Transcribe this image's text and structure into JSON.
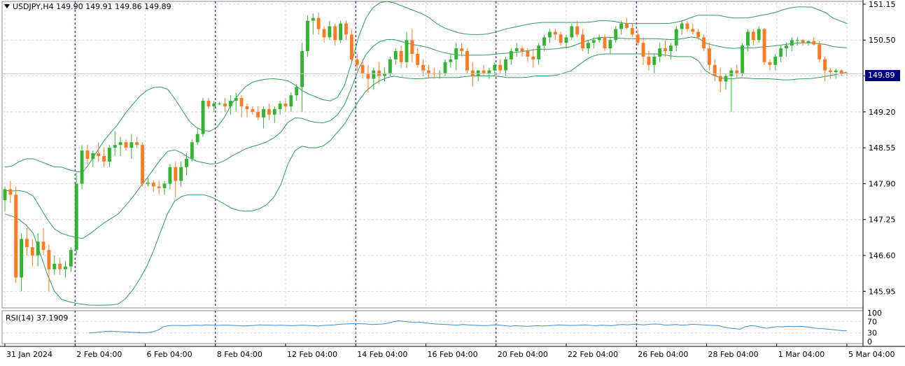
{
  "header": {
    "symbol_line": "USDJPY,H4  149.90 149.91 149.86 149.89"
  },
  "current_price_label": "149.89",
  "rsi": {
    "label": "RSI(14) 37.1909",
    "levels": [
      "100",
      "70",
      "30",
      "0"
    ],
    "values": [
      30,
      31,
      33,
      35,
      36,
      35,
      34,
      33,
      32,
      31,
      30,
      31,
      34,
      40,
      52,
      55,
      56,
      56,
      55,
      56,
      57,
      56,
      58,
      57,
      56,
      57,
      57,
      56,
      55,
      54,
      55,
      56,
      58,
      57,
      57,
      56,
      57,
      56,
      55,
      56,
      57,
      56,
      55,
      54,
      56,
      57,
      58,
      60,
      61,
      62,
      63,
      62,
      61,
      59,
      60,
      61,
      64,
      69,
      72,
      70,
      68,
      66,
      67,
      65,
      63,
      61,
      60,
      59,
      58,
      57,
      59,
      58,
      57,
      56,
      55,
      56,
      58,
      57,
      55,
      53,
      55,
      54,
      53,
      54,
      55,
      54,
      55,
      56,
      58,
      57,
      56,
      56,
      57,
      58,
      56,
      55,
      57,
      56,
      55,
      58,
      59,
      58,
      60,
      59,
      58,
      60,
      61,
      60,
      57,
      58,
      59,
      57,
      58,
      60,
      59,
      58,
      57,
      56,
      55,
      50,
      47,
      45,
      43,
      52,
      55,
      54,
      49,
      46,
      50,
      52,
      51,
      53,
      52,
      53,
      52,
      50,
      47,
      45,
      44,
      42,
      40,
      38,
      37
    ]
  },
  "colors": {
    "bull": "#32b432",
    "bear": "#ff7a22",
    "band": "#2e9b5c",
    "rsi_line": "#3c8fd8",
    "grid": "#d4d4d4",
    "separator": "#000080",
    "price_tag_bg": "#000080"
  },
  "chart_data": {
    "type": "candlestick",
    "title": "USDJPY,H4",
    "timeframe": "H4",
    "last_ohlc": {
      "open": 149.9,
      "high": 149.91,
      "low": 149.86,
      "close": 149.89
    },
    "ylim": [
      145.65,
      151.2
    ],
    "yticks": [
      "151.15",
      "150.50",
      "149.85",
      "149.20",
      "148.55",
      "147.90",
      "147.25",
      "146.60",
      "145.95"
    ],
    "xticks": [
      "31 Jan 2024",
      "2 Feb 04:00",
      "6 Feb 04:00",
      "8 Feb 04:00",
      "12 Feb 04:00",
      "14 Feb 04:00",
      "16 Feb 04:00",
      "20 Feb 04:00",
      "22 Feb 04:00",
      "26 Feb 04:00",
      "28 Feb 04:00",
      "1 Mar 04:00",
      "5 Mar 04:00"
    ],
    "grid": true,
    "indicators": [
      "Bollinger Bands",
      "RSI(14)"
    ],
    "ohlc": [
      [
        147.6,
        147.85,
        147.4,
        147.8
      ],
      [
        147.8,
        147.95,
        147.55,
        147.7
      ],
      [
        147.7,
        147.85,
        146.1,
        146.2
      ],
      [
        146.2,
        147.0,
        145.95,
        146.9
      ],
      [
        146.9,
        147.1,
        146.6,
        146.75
      ],
      [
        146.75,
        146.9,
        146.4,
        146.6
      ],
      [
        146.6,
        147.0,
        146.4,
        146.85
      ],
      [
        146.85,
        147.1,
        146.6,
        146.7
      ],
      [
        146.7,
        146.8,
        145.95,
        146.35
      ],
      [
        146.35,
        146.6,
        146.25,
        146.45
      ],
      [
        146.45,
        146.55,
        146.25,
        146.35
      ],
      [
        146.35,
        146.5,
        146.2,
        146.4
      ],
      [
        146.4,
        146.75,
        146.3,
        146.7
      ],
      [
        146.7,
        148.1,
        146.6,
        147.9
      ],
      [
        147.9,
        148.6,
        147.8,
        148.5
      ],
      [
        148.5,
        148.6,
        148.25,
        148.35
      ],
      [
        148.35,
        148.5,
        148.2,
        148.45
      ],
      [
        148.45,
        148.65,
        148.3,
        148.4
      ],
      [
        148.4,
        148.55,
        148.2,
        148.3
      ],
      [
        148.3,
        148.6,
        148.2,
        148.55
      ],
      [
        148.55,
        148.85,
        148.4,
        148.6
      ],
      [
        148.6,
        148.75,
        148.4,
        148.65
      ],
      [
        148.65,
        148.7,
        148.5,
        148.55
      ],
      [
        148.55,
        148.8,
        148.35,
        148.65
      ],
      [
        148.65,
        148.75,
        148.55,
        148.6
      ],
      [
        148.6,
        148.65,
        147.85,
        147.9
      ],
      [
        147.9,
        148.0,
        147.85,
        147.92
      ],
      [
        147.92,
        147.96,
        147.75,
        147.85
      ],
      [
        147.85,
        147.95,
        147.7,
        147.82
      ],
      [
        147.82,
        147.95,
        147.7,
        147.9
      ],
      [
        147.9,
        148.25,
        147.8,
        148.2
      ],
      [
        148.2,
        148.3,
        147.65,
        147.95
      ],
      [
        147.95,
        148.3,
        147.85,
        148.2
      ],
      [
        148.2,
        148.45,
        148.05,
        148.35
      ],
      [
        148.35,
        148.7,
        148.3,
        148.65
      ],
      [
        148.65,
        148.9,
        148.6,
        148.8
      ],
      [
        148.8,
        149.45,
        148.75,
        149.4
      ],
      [
        149.4,
        149.45,
        149.25,
        149.3
      ],
      [
        149.3,
        149.4,
        149.2,
        149.35
      ],
      [
        149.35,
        149.38,
        149.32,
        149.35
      ],
      [
        149.35,
        149.45,
        149.2,
        149.3
      ],
      [
        149.3,
        149.5,
        149.15,
        149.4
      ],
      [
        149.4,
        149.55,
        149.2,
        149.45
      ],
      [
        149.45,
        149.5,
        149.1,
        149.3
      ],
      [
        149.3,
        149.35,
        149.1,
        149.25
      ],
      [
        149.25,
        149.3,
        149.15,
        149.2
      ],
      [
        149.2,
        149.3,
        149.05,
        149.1
      ],
      [
        149.1,
        149.3,
        148.9,
        149.25
      ],
      [
        149.25,
        149.35,
        149.05,
        149.15
      ],
      [
        149.15,
        149.3,
        149.0,
        149.25
      ],
      [
        149.25,
        149.4,
        149.15,
        149.35
      ],
      [
        149.35,
        149.45,
        149.2,
        149.3
      ],
      [
        149.3,
        149.55,
        149.2,
        149.5
      ],
      [
        149.5,
        149.7,
        149.4,
        149.65
      ],
      [
        149.65,
        150.45,
        149.2,
        150.3
      ],
      [
        150.3,
        150.95,
        150.2,
        150.85
      ],
      [
        150.85,
        150.98,
        150.6,
        150.9
      ],
      [
        150.9,
        151.0,
        150.6,
        150.7
      ],
      [
        150.7,
        150.75,
        150.45,
        150.55
      ],
      [
        150.55,
        150.85,
        150.5,
        150.75
      ],
      [
        150.75,
        150.8,
        150.4,
        150.5
      ],
      [
        150.5,
        150.85,
        150.45,
        150.8
      ],
      [
        150.8,
        150.85,
        150.5,
        150.6
      ],
      [
        150.6,
        150.7,
        150.1,
        150.15
      ],
      [
        150.15,
        150.25,
        149.95,
        150.05
      ],
      [
        150.05,
        150.15,
        149.8,
        149.9
      ],
      [
        149.9,
        150.05,
        149.55,
        149.8
      ],
      [
        149.8,
        150.0,
        149.6,
        149.95
      ],
      [
        149.95,
        150.1,
        149.7,
        149.85
      ],
      [
        149.85,
        150.0,
        149.75,
        149.9
      ],
      [
        149.9,
        150.2,
        149.85,
        150.15
      ],
      [
        150.15,
        150.35,
        150.05,
        150.3
      ],
      [
        150.3,
        150.4,
        150.0,
        150.1
      ],
      [
        150.1,
        150.65,
        150.0,
        150.5
      ],
      [
        150.5,
        150.7,
        150.1,
        150.25
      ],
      [
        150.25,
        150.35,
        150.0,
        150.05
      ],
      [
        150.05,
        150.15,
        149.85,
        149.95
      ],
      [
        149.95,
        150.05,
        149.8,
        149.9
      ],
      [
        149.9,
        150.0,
        149.8,
        149.88
      ],
      [
        149.88,
        149.95,
        149.8,
        149.9
      ],
      [
        149.9,
        150.15,
        149.85,
        150.1
      ],
      [
        150.1,
        150.25,
        150.0,
        150.15
      ],
      [
        150.15,
        150.45,
        149.95,
        150.35
      ],
      [
        150.35,
        150.45,
        150.2,
        150.3
      ],
      [
        150.3,
        150.35,
        149.9,
        149.95
      ],
      [
        149.95,
        150.1,
        149.65,
        149.85
      ],
      [
        149.85,
        149.95,
        149.75,
        149.95
      ],
      [
        149.95,
        150.05,
        149.85,
        149.9
      ],
      [
        149.9,
        150.0,
        149.8,
        149.95
      ],
      [
        149.95,
        150.1,
        149.85,
        150.05
      ],
      [
        150.05,
        150.15,
        149.9,
        149.95
      ],
      [
        149.95,
        150.2,
        149.85,
        150.15
      ],
      [
        150.15,
        150.35,
        150.05,
        150.3
      ],
      [
        150.3,
        150.45,
        150.2,
        150.35
      ],
      [
        150.35,
        150.4,
        150.2,
        150.3
      ],
      [
        150.3,
        150.35,
        150.1,
        150.2
      ],
      [
        150.2,
        150.35,
        150.0,
        150.15
      ],
      [
        150.15,
        150.45,
        150.05,
        150.4
      ],
      [
        150.4,
        150.6,
        150.3,
        150.55
      ],
      [
        150.55,
        150.7,
        150.45,
        150.65
      ],
      [
        150.65,
        150.7,
        150.5,
        150.6
      ],
      [
        150.6,
        150.65,
        150.4,
        150.45
      ],
      [
        150.45,
        150.6,
        150.35,
        150.55
      ],
      [
        150.55,
        150.8,
        150.5,
        150.75
      ],
      [
        150.75,
        150.85,
        150.55,
        150.6
      ],
      [
        150.6,
        150.7,
        150.3,
        150.35
      ],
      [
        150.35,
        150.5,
        150.25,
        150.45
      ],
      [
        150.45,
        150.55,
        150.35,
        150.5
      ],
      [
        150.5,
        150.6,
        150.45,
        150.55
      ],
      [
        150.55,
        150.6,
        150.3,
        150.35
      ],
      [
        150.35,
        150.55,
        150.25,
        150.5
      ],
      [
        150.5,
        150.75,
        150.45,
        150.7
      ],
      [
        150.7,
        150.85,
        150.6,
        150.8
      ],
      [
        150.8,
        150.9,
        150.7,
        150.72
      ],
      [
        150.72,
        150.8,
        150.55,
        150.6
      ],
      [
        150.6,
        150.7,
        150.4,
        150.45
      ],
      [
        150.45,
        150.55,
        150.05,
        150.2
      ],
      [
        150.2,
        150.3,
        149.95,
        150.05
      ],
      [
        150.05,
        150.25,
        149.9,
        150.2
      ],
      [
        150.2,
        150.45,
        150.1,
        150.35
      ],
      [
        150.35,
        150.5,
        150.2,
        150.3
      ],
      [
        150.3,
        150.45,
        150.15,
        150.4
      ],
      [
        150.4,
        150.75,
        150.3,
        150.7
      ],
      [
        150.7,
        150.85,
        150.6,
        150.8
      ],
      [
        150.8,
        150.85,
        150.65,
        150.7
      ],
      [
        150.7,
        150.8,
        150.6,
        150.65
      ],
      [
        150.65,
        150.7,
        150.5,
        150.55
      ],
      [
        150.55,
        150.6,
        150.3,
        150.35
      ],
      [
        150.35,
        150.45,
        149.95,
        150.05
      ],
      [
        150.05,
        150.15,
        149.75,
        149.85
      ],
      [
        149.85,
        150.0,
        149.55,
        149.75
      ],
      [
        149.75,
        149.9,
        149.6,
        149.85
      ],
      [
        149.85,
        150.0,
        149.2,
        149.95
      ],
      [
        149.95,
        150.05,
        149.8,
        149.9
      ],
      [
        149.9,
        150.45,
        149.85,
        150.4
      ],
      [
        150.4,
        150.7,
        150.3,
        150.65
      ],
      [
        150.65,
        150.7,
        150.4,
        150.5
      ],
      [
        150.5,
        150.75,
        150.45,
        150.7
      ],
      [
        150.7,
        150.72,
        150.05,
        150.1
      ],
      [
        150.1,
        150.15,
        149.95,
        150.05
      ],
      [
        150.05,
        150.25,
        149.95,
        150.2
      ],
      [
        150.2,
        150.4,
        150.1,
        150.35
      ],
      [
        150.35,
        150.45,
        150.2,
        150.4
      ],
      [
        150.4,
        150.55,
        150.3,
        150.5
      ],
      [
        150.5,
        150.55,
        150.4,
        150.5
      ],
      [
        150.5,
        150.52,
        150.4,
        150.45
      ],
      [
        150.45,
        150.5,
        150.4,
        150.48
      ],
      [
        150.48,
        150.55,
        150.4,
        150.42
      ],
      [
        150.42,
        150.48,
        150.1,
        150.15
      ],
      [
        150.15,
        150.2,
        149.75,
        149.95
      ],
      [
        149.95,
        150.0,
        149.8,
        149.92
      ],
      [
        149.92,
        149.98,
        149.8,
        149.95
      ],
      [
        149.95,
        149.97,
        149.85,
        149.9
      ],
      [
        149.9,
        149.91,
        149.86,
        149.89
      ]
    ],
    "bollinger_upper": [
      148.2,
      148.22,
      148.3,
      148.35,
      148.35,
      148.3,
      148.25,
      148.2,
      148.2,
      148.15,
      148.12,
      148.1,
      148.3,
      148.5,
      148.7,
      148.85,
      149.0,
      149.2,
      149.35,
      149.5,
      149.6,
      149.65,
      149.65,
      149.6,
      149.4,
      149.2,
      149.0,
      148.9,
      148.85,
      148.85,
      148.95,
      149.15,
      149.4,
      149.55,
      149.7,
      149.75,
      149.78,
      149.8,
      149.8,
      149.78,
      149.75,
      149.65,
      149.55,
      149.5,
      149.45,
      149.4,
      149.4,
      149.5,
      149.8,
      150.3,
      150.75,
      151.0,
      151.15,
      151.2,
      151.2,
      151.15,
      151.1,
      151.05,
      151.0,
      150.95,
      150.85,
      150.75,
      150.7,
      150.65,
      150.62,
      150.6,
      150.6,
      150.6,
      150.62,
      150.65,
      150.7,
      150.72,
      150.75,
      150.78,
      150.8,
      150.82,
      150.82,
      150.82,
      150.82,
      150.82,
      150.82,
      150.82,
      150.82,
      150.85,
      150.85,
      150.85,
      150.82,
      150.8,
      150.8,
      150.8,
      150.8,
      150.8,
      150.8,
      150.8,
      150.82,
      150.85,
      150.9,
      150.95,
      150.95,
      150.95,
      150.95,
      150.92,
      150.9,
      150.9,
      150.9,
      150.92,
      150.95,
      150.97,
      151.0,
      151.05,
      151.08,
      151.1,
      151.1,
      151.1,
      151.05,
      151.0,
      150.9,
      150.85,
      150.8
    ],
    "bollinger_lower": [
      147.35,
      147.3,
      147.2,
      147.0,
      146.5,
      146.0,
      145.8,
      145.75,
      145.72,
      145.7,
      145.7,
      145.7,
      145.72,
      145.85,
      146.1,
      146.4,
      146.8,
      147.3,
      147.6,
      147.7,
      147.7,
      147.7,
      147.65,
      147.55,
      147.45,
      147.4,
      147.4,
      147.45,
      147.55,
      147.8,
      148.3,
      148.6,
      148.55,
      148.55,
      148.6,
      148.8,
      149.0,
      149.3,
      149.55,
      149.7,
      149.8,
      149.85,
      149.82,
      149.8,
      149.8,
      149.82,
      149.82,
      149.82,
      149.82,
      149.85,
      149.85,
      149.85,
      149.85,
      149.82,
      149.82,
      149.82,
      149.85,
      149.85,
      149.85,
      149.9,
      149.95,
      150.1,
      150.2,
      150.25,
      150.25,
      150.25,
      150.25,
      150.25,
      150.25,
      150.25,
      150.22,
      150.2,
      150.2,
      150.2,
      149.95,
      149.85,
      149.8,
      149.8,
      149.82,
      149.8,
      149.8,
      149.8,
      149.78,
      149.78,
      149.8,
      149.8,
      149.82,
      149.85,
      149.88,
      149.92
    ]
  }
}
